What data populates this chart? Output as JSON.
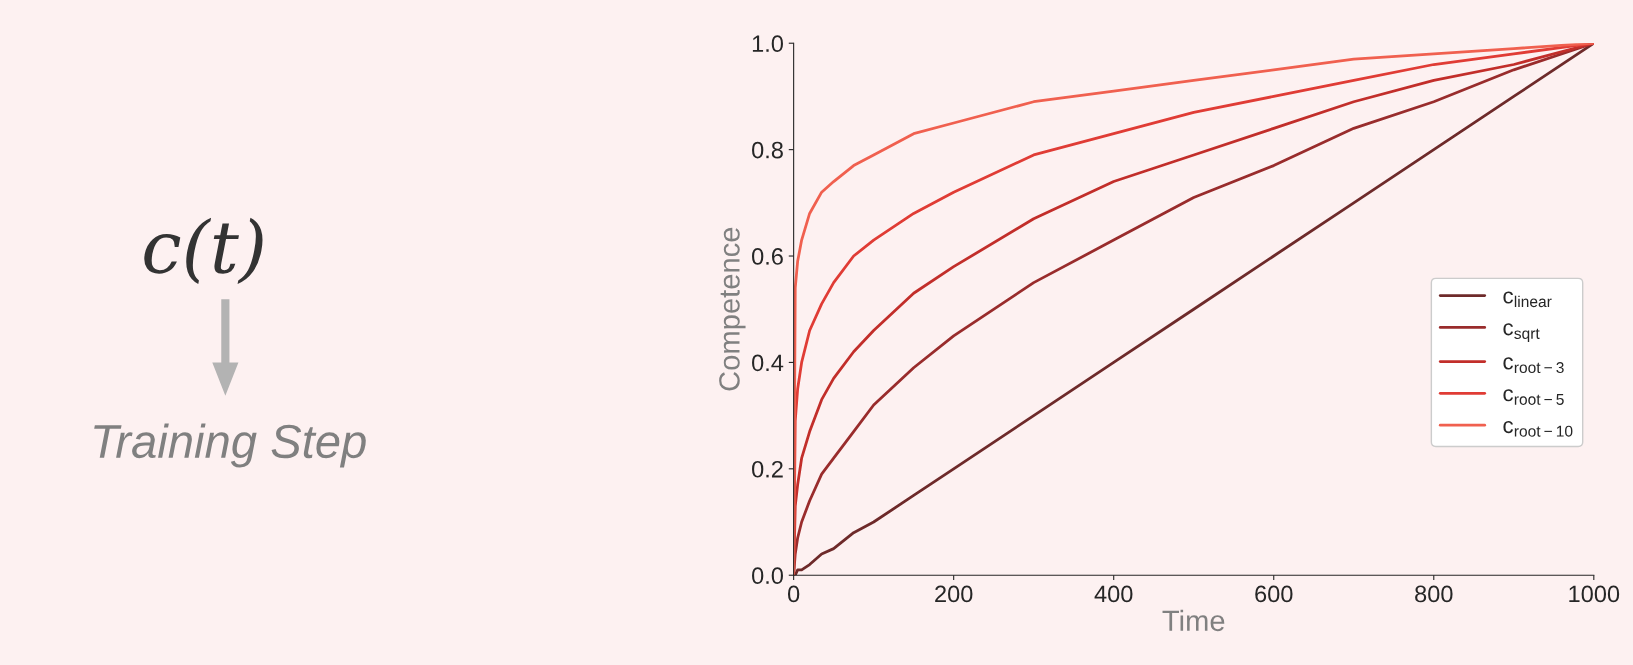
{
  "chart_data": {
    "type": "line",
    "xlabel": "Time",
    "ylabel": "Competence",
    "annotations": [
      "c(t)",
      "Training Step"
    ],
    "x": [
      0,
      2,
      5,
      10,
      20,
      35,
      50,
      75,
      100,
      150,
      200,
      300,
      400,
      500,
      600,
      700,
      800,
      900,
      1000
    ],
    "series": [
      {
        "name": "c$_{linear}$",
        "color": "#6e2a2a",
        "values": [
          0,
          0.0,
          0.01,
          0.01,
          0.02,
          0.04,
          0.05,
          0.08,
          0.1,
          0.15,
          0.2,
          0.3,
          0.4,
          0.5,
          0.6,
          0.7,
          0.8,
          0.9,
          1.0
        ]
      },
      {
        "name": "c$_{sqrt}$",
        "color": "#992c2c",
        "values": [
          0,
          0.04,
          0.07,
          0.1,
          0.14,
          0.19,
          0.22,
          0.27,
          0.32,
          0.39,
          0.45,
          0.55,
          0.63,
          0.71,
          0.77,
          0.84,
          0.89,
          0.95,
          1.0
        ]
      },
      {
        "name": "c$_{root−3}$",
        "color": "#c22e2a",
        "values": [
          0,
          0.13,
          0.17,
          0.22,
          0.27,
          0.33,
          0.37,
          0.42,
          0.46,
          0.53,
          0.58,
          0.67,
          0.74,
          0.79,
          0.84,
          0.89,
          0.93,
          0.96,
          1.0
        ]
      },
      {
        "name": "c$_{root−5}$",
        "color": "#e03c35",
        "values": [
          0,
          0.29,
          0.35,
          0.4,
          0.46,
          0.51,
          0.55,
          0.6,
          0.63,
          0.68,
          0.72,
          0.79,
          0.83,
          0.87,
          0.9,
          0.93,
          0.96,
          0.98,
          1.0
        ]
      },
      {
        "name": "c$_{root−10}$",
        "color": "#f0604f",
        "values": [
          0,
          0.54,
          0.59,
          0.63,
          0.68,
          0.72,
          0.74,
          0.77,
          0.79,
          0.83,
          0.85,
          0.89,
          0.91,
          0.93,
          0.95,
          0.97,
          0.98,
          0.99,
          1.0
        ]
      }
    ],
    "xlim": [
      0,
      1000
    ],
    "xticks": [
      0,
      200,
      400,
      600,
      800,
      1000
    ],
    "ylim": [
      0.0,
      1.0
    ],
    "yticks": [
      {
        "value": 0,
        "label": "0.0"
      },
      0.2,
      0.4,
      0.6,
      0.8,
      {
        "value": 1,
        "label": "1.0"
      }
    ],
    "grid": false,
    "legend": "right",
    "marker": "none",
    "line_style": "solid"
  }
}
